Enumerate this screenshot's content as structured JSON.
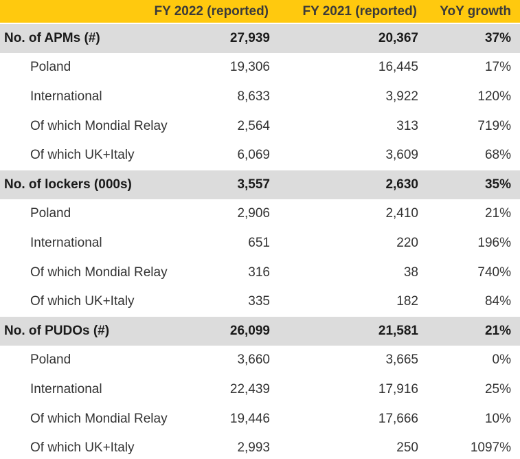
{
  "chart_data": {
    "type": "table",
    "columns": [
      "",
      "FY 2022 (reported)",
      "FY 2021 (reported)",
      "YoY growth"
    ],
    "groups": [
      {
        "label": "No. of APMs (#)",
        "fy2022": "27,939",
        "fy2021": "20,367",
        "yoy": "37%",
        "rows": [
          {
            "label": "Poland",
            "fy2022": "19,306",
            "fy2021": "16,445",
            "yoy": "17%"
          },
          {
            "label": "International",
            "fy2022": "8,633",
            "fy2021": "3,922",
            "yoy": "120%"
          },
          {
            "label": "Of which Mondial Relay",
            "fy2022": "2,564",
            "fy2021": "313",
            "yoy": "719%"
          },
          {
            "label": "Of which UK+Italy",
            "fy2022": "6,069",
            "fy2021": "3,609",
            "yoy": "68%"
          }
        ]
      },
      {
        "label": "No. of lockers (000s)",
        "fy2022": "3,557",
        "fy2021": "2,630",
        "yoy": "35%",
        "rows": [
          {
            "label": "Poland",
            "fy2022": "2,906",
            "fy2021": "2,410",
            "yoy": "21%"
          },
          {
            "label": "International",
            "fy2022": "651",
            "fy2021": "220",
            "yoy": "196%"
          },
          {
            "label": "Of which Mondial Relay",
            "fy2022": "316",
            "fy2021": "38",
            "yoy": "740%"
          },
          {
            "label": "Of which UK+Italy",
            "fy2022": "335",
            "fy2021": "182",
            "yoy": "84%"
          }
        ]
      },
      {
        "label": "No. of PUDOs (#)",
        "fy2022": "26,099",
        "fy2021": "21,581",
        "yoy": "21%",
        "rows": [
          {
            "label": "Poland",
            "fy2022": "3,660",
            "fy2021": "3,665",
            "yoy": "0%"
          },
          {
            "label": "International",
            "fy2022": "22,439",
            "fy2021": "17,916",
            "yoy": "25%"
          },
          {
            "label": "Of which Mondial Relay",
            "fy2022": "19,446",
            "fy2021": "17,666",
            "yoy": "10%"
          },
          {
            "label": "Of which UK+Italy",
            "fy2022": "2,993",
            "fy2021": "250",
            "yoy": "1097%"
          }
        ]
      }
    ],
    "colors": {
      "header": "#ffc90e",
      "group_row": "#dcdcdc",
      "sub_row": "#ffffff"
    }
  }
}
